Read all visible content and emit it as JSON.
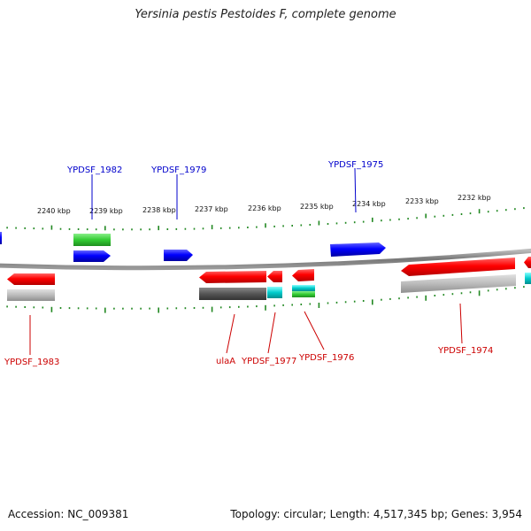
{
  "title": "Yersinia pestis Pestoides F, complete genome",
  "footer": {
    "accession": "Accession: NC_009381",
    "topology": "Topology: circular; Length: 4,517,345 bp; Genes: 3,954"
  },
  "colors": {
    "forward_label": "#0000cc",
    "reverse_label": "#cc0000",
    "cds": "#ff0000",
    "cds_forward": "#0000ff",
    "gene_track": "#33cc33",
    "gray_track": "#bbbbbb",
    "dark_gray": "#555555",
    "rna": "#00cccc",
    "ticks": "#228822",
    "backbone": "#888888"
  },
  "ruler": {
    "labels": [
      "2240 kbp",
      "2239 kbp",
      "2238 kbp",
      "2237 kbp",
      "2236 kbp",
      "2235 kbp",
      "2234 kbp",
      "2233 kbp",
      "2232 kbp"
    ]
  },
  "gene_labels": {
    "forward": [
      "YPDSF_1982",
      "YPDSF_1979",
      "YPDSF_1975"
    ],
    "reverse": [
      "YPDSF_1983",
      "ulaA",
      "YPDSF_1977",
      "YPDSF_1976",
      "YPDSF_1974"
    ]
  }
}
